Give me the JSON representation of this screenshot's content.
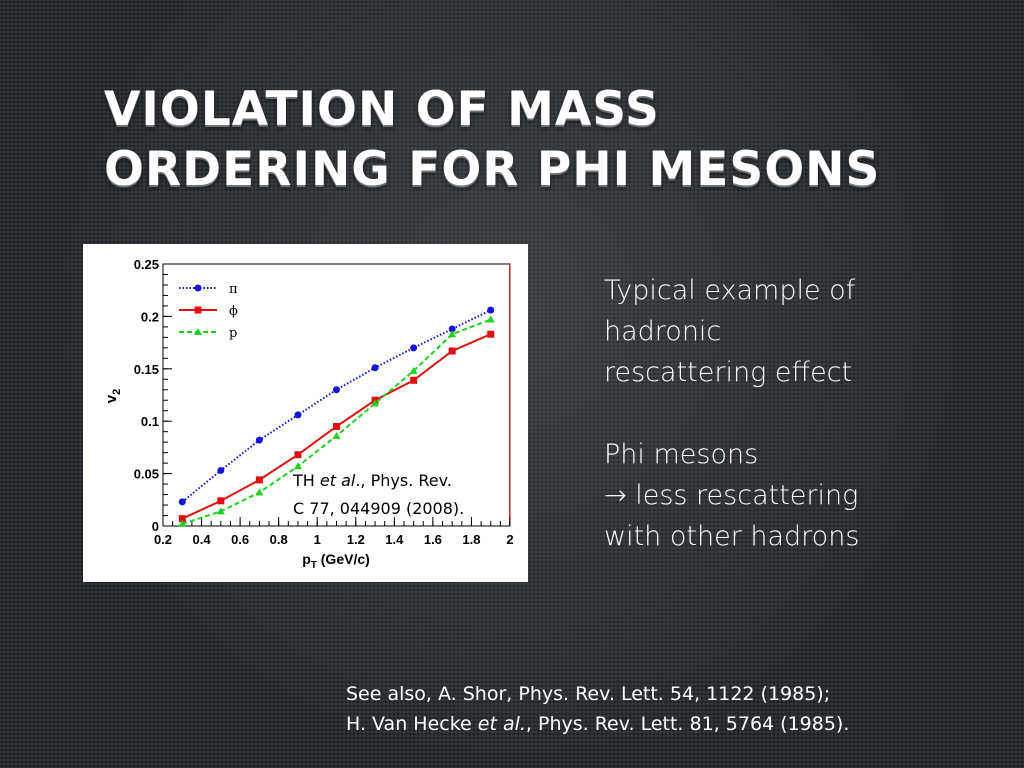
{
  "title": {
    "line1": "VIOLATION OF MASS",
    "line2": "ORDERING FOR PHI MESONS"
  },
  "body": {
    "line1": "Typical example of",
    "line2": "hadronic",
    "line3": "rescattering effect",
    "line4": "Phi mesons",
    "line5_arrow": "→",
    "line5_text": " less rescattering",
    "line6": "with other hadrons"
  },
  "footnote": {
    "line1": "See also, A. Shor, Phys. Rev. Lett. 54, 1122 (1985);",
    "line2_pre": "H. Van Hecke ",
    "line2_italic": "et al.",
    "line2_post": ", Phys. Rev. Lett. 81, 5764 (1985)."
  },
  "citation": {
    "line1_pre": "TH ",
    "line1_italic": "et al",
    "line1_post": "., Phys. Rev.",
    "line2": "C 77, 044909 (2008)."
  },
  "chart_data": {
    "type": "line",
    "xlabel_main": "p",
    "xlabel_sub": "T",
    "xlabel_rest": " (GeV/c)",
    "ylabel_main": "v",
    "ylabel_sub": "2",
    "xlim": [
      0.2,
      2.0
    ],
    "ylim": [
      0,
      0.25
    ],
    "x_ticks": [
      "0.2",
      "0.4",
      "0.6",
      "0.8",
      "1",
      "1.2",
      "1.4",
      "1.6",
      "1.8",
      "2"
    ],
    "y_ticks": [
      "0",
      "0.05",
      "0.1",
      "0.15",
      "0.2",
      "0.25"
    ],
    "grid": false,
    "legend_position": "top-left",
    "series": [
      {
        "name": "π",
        "color": "#1515d8",
        "marker": "circle",
        "line": "dotted",
        "x": [
          0.3,
          0.5,
          0.7,
          0.9,
          1.1,
          1.3,
          1.5,
          1.7,
          1.9
        ],
        "y": [
          0.023,
          0.053,
          0.082,
          0.106,
          0.13,
          0.151,
          0.17,
          0.188,
          0.206
        ]
      },
      {
        "name": "ϕ",
        "color": "#e01010",
        "marker": "square",
        "line": "solid",
        "x": [
          0.3,
          0.5,
          0.7,
          0.9,
          1.1,
          1.3,
          1.5,
          1.7,
          1.9
        ],
        "y": [
          0.007,
          0.024,
          0.044,
          0.068,
          0.095,
          0.12,
          0.139,
          0.167,
          0.183
        ]
      },
      {
        "name": "p",
        "color": "#22d022",
        "marker": "triangle",
        "line": "dashed",
        "x": [
          0.3,
          0.5,
          0.7,
          0.9,
          1.1,
          1.3,
          1.5,
          1.7,
          1.9
        ],
        "y": [
          0.002,
          0.014,
          0.032,
          0.057,
          0.086,
          0.117,
          0.148,
          0.183,
          0.197
        ]
      }
    ]
  }
}
